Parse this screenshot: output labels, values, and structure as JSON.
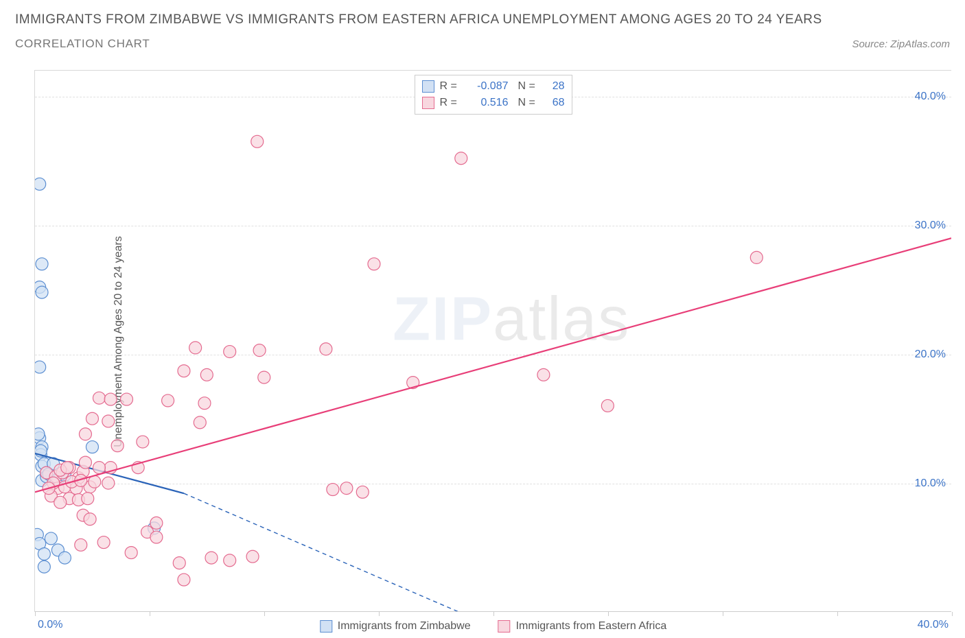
{
  "header": {
    "title": "IMMIGRANTS FROM ZIMBABWE VS IMMIGRANTS FROM EASTERN AFRICA UNEMPLOYMENT AMONG AGES 20 TO 24 YEARS",
    "subtitle": "CORRELATION CHART",
    "source": "Source: ZipAtlas.com"
  },
  "chart": {
    "type": "scatter",
    "y_axis_title": "Unemployment Among Ages 20 to 24 years",
    "x_range": [
      0,
      40
    ],
    "y_range": [
      0,
      42
    ],
    "x_ticks": [
      0,
      5,
      10,
      15,
      20,
      25,
      30,
      35,
      40
    ],
    "x_tick_labels": {
      "min": "0.0%",
      "max": "40.0%"
    },
    "y_gridlines": [
      10,
      20,
      30,
      40
    ],
    "y_tick_labels": [
      "10.0%",
      "20.0%",
      "30.0%",
      "40.0%"
    ],
    "background_color": "#ffffff",
    "grid_color": "#e0e0e0",
    "axis_label_color": "#3b73c7",
    "marker_radius": 9,
    "marker_stroke_width": 1.2,
    "line_width": 2.2,
    "series": [
      {
        "name": "Immigrants from Zimbabwe",
        "fill": "#d2e1f4",
        "stroke": "#5b8ed1",
        "line_color": "#2a63b8",
        "R": "-0.087",
        "N": "28",
        "trend": {
          "x1": 0,
          "y1": 12.3,
          "x2": 6.5,
          "y2": 9.2,
          "ext_x2": 18.5,
          "ext_y2": 0
        },
        "points": [
          [
            0.2,
            33.2
          ],
          [
            0.3,
            27
          ],
          [
            0.2,
            25.2
          ],
          [
            0.3,
            24.8
          ],
          [
            0.2,
            19
          ],
          [
            0.2,
            13.5
          ],
          [
            0.15,
            13.8
          ],
          [
            0.3,
            12.8
          ],
          [
            0.25,
            12.2
          ],
          [
            0.25,
            12.5
          ],
          [
            0.3,
            11.3
          ],
          [
            0.4,
            11.5
          ],
          [
            0.5,
            10.8
          ],
          [
            0.3,
            10.2
          ],
          [
            0.5,
            10.5
          ],
          [
            0.6,
            10.7
          ],
          [
            0.8,
            11.5
          ],
          [
            1.0,
            10.3
          ],
          [
            1.3,
            10.6
          ],
          [
            2.5,
            12.8
          ],
          [
            0.1,
            6
          ],
          [
            0.2,
            5.3
          ],
          [
            0.4,
            4.5
          ],
          [
            0.7,
            5.7
          ],
          [
            1.0,
            4.8
          ],
          [
            1.3,
            4.2
          ],
          [
            0.4,
            3.5
          ],
          [
            5.2,
            6.5
          ]
        ]
      },
      {
        "name": "Immigrants from Eastern Africa",
        "fill": "#f8d7df",
        "stroke": "#e46a8f",
        "line_color": "#e83e78",
        "R": "0.516",
        "N": "68",
        "trend": {
          "x1": 0,
          "y1": 9.3,
          "x2": 40,
          "y2": 29
        },
        "points": [
          [
            9.7,
            36.5
          ],
          [
            18.6,
            35.2
          ],
          [
            14.8,
            27
          ],
          [
            31.5,
            27.5
          ],
          [
            7.0,
            20.5
          ],
          [
            8.5,
            20.2
          ],
          [
            9.8,
            20.3
          ],
          [
            12.7,
            20.4
          ],
          [
            6.5,
            18.7
          ],
          [
            7.5,
            18.4
          ],
          [
            10.0,
            18.2
          ],
          [
            22.2,
            18.4
          ],
          [
            2.8,
            16.6
          ],
          [
            3.3,
            16.5
          ],
          [
            4.0,
            16.5
          ],
          [
            5.8,
            16.4
          ],
          [
            7.4,
            16.2
          ],
          [
            16.5,
            17.8
          ],
          [
            25.0,
            16.0
          ],
          [
            2.5,
            15.0
          ],
          [
            3.2,
            14.8
          ],
          [
            7.2,
            14.7
          ],
          [
            2.2,
            13.8
          ],
          [
            4.7,
            13.2
          ],
          [
            3.3,
            11.2
          ],
          [
            0.5,
            10.8
          ],
          [
            0.9,
            10.5
          ],
          [
            1.2,
            10.8
          ],
          [
            1.5,
            11.2
          ],
          [
            1.9,
            10.4
          ],
          [
            2.1,
            10.9
          ],
          [
            2.8,
            11.2
          ],
          [
            1.0,
            9.6
          ],
          [
            1.3,
            9.7
          ],
          [
            1.8,
            9.6
          ],
          [
            2.4,
            9.7
          ],
          [
            2.2,
            11.6
          ],
          [
            1.5,
            8.8
          ],
          [
            1.9,
            8.7
          ],
          [
            2.3,
            8.8
          ],
          [
            4.5,
            11.2
          ],
          [
            13.0,
            9.5
          ],
          [
            13.6,
            9.6
          ],
          [
            14.3,
            9.3
          ],
          [
            2.1,
            7.5
          ],
          [
            2.4,
            7.2
          ],
          [
            5.3,
            6.9
          ],
          [
            2.0,
            5.2
          ],
          [
            3.0,
            5.4
          ],
          [
            4.2,
            4.6
          ],
          [
            4.9,
            6.2
          ],
          [
            5.3,
            5.8
          ],
          [
            6.3,
            3.8
          ],
          [
            7.7,
            4.2
          ],
          [
            8.5,
            4.0
          ],
          [
            9.5,
            4.3
          ],
          [
            6.5,
            2.5
          ],
          [
            0.8,
            10.0
          ],
          [
            1.6,
            10.1
          ],
          [
            2.0,
            10.2
          ],
          [
            2.6,
            10.1
          ],
          [
            3.2,
            10.0
          ],
          [
            1.1,
            11.0
          ],
          [
            1.4,
            11.2
          ],
          [
            0.7,
            9.0
          ],
          [
            1.1,
            8.5
          ],
          [
            0.6,
            9.6
          ],
          [
            3.6,
            12.9
          ]
        ]
      }
    ],
    "bottom_legend": [
      {
        "label": "Immigrants from Zimbabwe",
        "fill": "#d2e1f4",
        "stroke": "#5b8ed1"
      },
      {
        "label": "Immigrants from Eastern Africa",
        "fill": "#f8d7df",
        "stroke": "#e46a8f"
      }
    ],
    "watermark": {
      "bold": "ZIP",
      "rest": "atlas"
    }
  }
}
